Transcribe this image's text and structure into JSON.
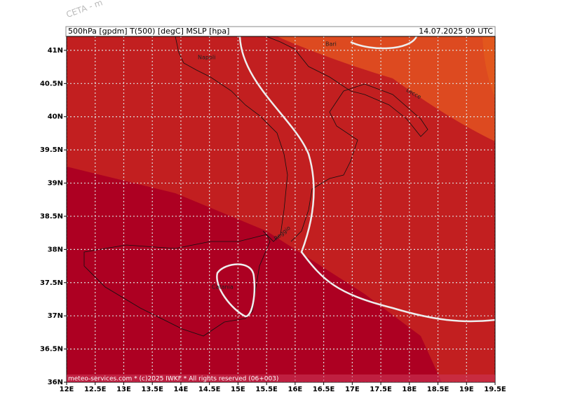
{
  "header": {
    "model": "CETA - m",
    "title": "500hPa [gpdm] T(500) [degC] MSLP [hpa]",
    "valid": "14.07.2025 09 UTC"
  },
  "map": {
    "lonlim": [
      12,
      19.5
    ],
    "latlim": [
      36,
      41.21
    ],
    "lon_ticks": [
      {
        "value": 12,
        "label": "12E"
      },
      {
        "value": 12.5,
        "label": "12.5E"
      },
      {
        "value": 13,
        "label": "13E"
      },
      {
        "value": 13.5,
        "label": "13.5E"
      },
      {
        "value": 14,
        "label": "14E"
      },
      {
        "value": 14.5,
        "label": "14.5E"
      },
      {
        "value": 15,
        "label": "15E"
      },
      {
        "value": 15.5,
        "label": "15.5E"
      },
      {
        "value": 16,
        "label": "16E"
      },
      {
        "value": 16.5,
        "label": "16.5E"
      },
      {
        "value": 17,
        "label": "17E"
      },
      {
        "value": 17.5,
        "label": "17.5E"
      },
      {
        "value": 18,
        "label": "18E"
      },
      {
        "value": 18.5,
        "label": "18.5E"
      },
      {
        "value": 19,
        "label": "19E"
      },
      {
        "value": 19.5,
        "label": "19.5E"
      }
    ],
    "lat_ticks": [
      {
        "value": 36,
        "label": "36N"
      },
      {
        "value": 36.5,
        "label": "36.5N"
      },
      {
        "value": 37,
        "label": "37N"
      },
      {
        "value": 37.5,
        "label": "37.5N"
      },
      {
        "value": 38,
        "label": "38N"
      },
      {
        "value": 38.5,
        "label": "38.5N"
      },
      {
        "value": 39,
        "label": "39N"
      },
      {
        "value": 39.5,
        "label": "39.5N"
      },
      {
        "value": 40,
        "label": "40N"
      },
      {
        "value": 40.5,
        "label": "40.5N"
      },
      {
        "value": 41,
        "label": "41N"
      }
    ],
    "cities": [
      "Napoli",
      "Bari",
      "Lecce",
      "Reggio",
      "Catania"
    ]
  },
  "footer": "meteo-services.com * (c)2025 IWKF * All rights reserved (06+003)"
}
